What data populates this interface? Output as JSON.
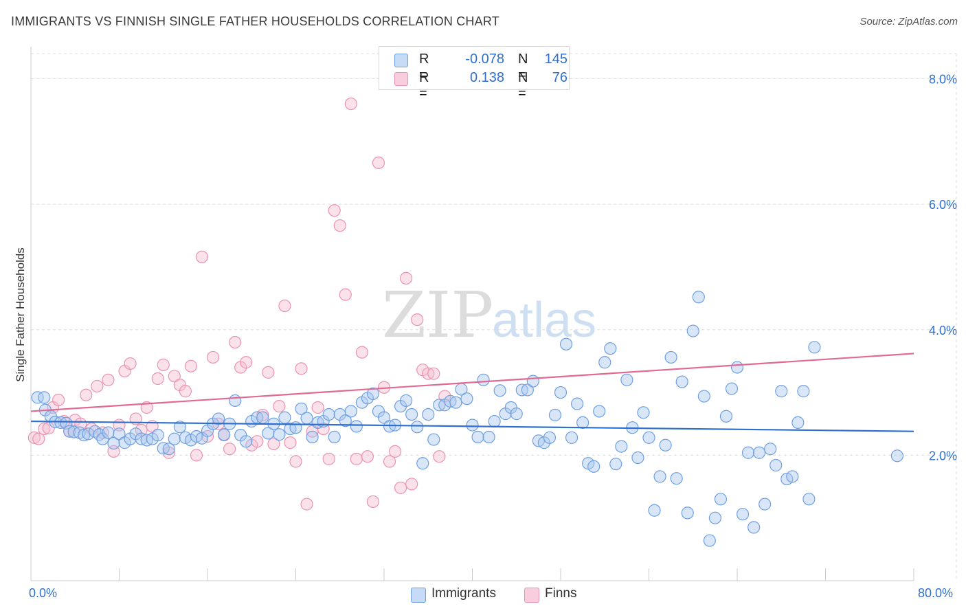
{
  "title": "IMMIGRANTS VS FINNISH SINGLE FATHER HOUSEHOLDS CORRELATION CHART",
  "source": "Source: ZipAtlas.com",
  "watermark": {
    "zip": "ZIP",
    "atlas": "atlas"
  },
  "legend": {
    "rows": [
      {
        "r_label": "R =",
        "r_value": "-0.078",
        "n_label": "N =",
        "n_value": "145"
      },
      {
        "r_label": "R =",
        "r_value": "0.138",
        "n_label": "N =",
        "n_value": "76"
      }
    ]
  },
  "bottom_legend": [
    "Immigrants",
    "Finns"
  ],
  "colors": {
    "immigrants_fill": "#a9c8f0",
    "immigrants_stroke": "#6f9fe0",
    "immigrants_line": "#2f6fce",
    "finns_fill": "#f6bcd0",
    "finns_stroke": "#ea93b2",
    "finns_line": "#e06a93",
    "tick_label": "#2f6fce",
    "grid": "#dddddd"
  },
  "chart_data": {
    "type": "scatter",
    "title": "IMMIGRANTS VS FINNISH SINGLE FATHER HOUSEHOLDS CORRELATION CHART",
    "xlabel": "",
    "ylabel": "Single Father Households",
    "xlim": [
      0,
      80
    ],
    "ylim": [
      0,
      8.4
    ],
    "x_tick_labels": [
      "0.0%",
      "80.0%"
    ],
    "y_ticks": [
      2,
      4,
      6,
      8
    ],
    "y_tick_labels": [
      "2.0%",
      "4.0%",
      "6.0%",
      "8.0%"
    ],
    "grid": true,
    "legend_position": "top-center",
    "series": [
      {
        "name": "Immigrants",
        "R": -0.078,
        "N": 145,
        "trend": {
          "x": [
            0,
            80
          ],
          "y": [
            2.54,
            2.38
          ]
        },
        "points": [
          [
            0.6,
            2.92
          ],
          [
            1.2,
            2.92
          ],
          [
            1.3,
            2.72
          ],
          [
            1.8,
            2.62
          ],
          [
            2.2,
            2.53
          ],
          [
            2.7,
            2.52
          ],
          [
            3.2,
            2.51
          ],
          [
            3.5,
            2.38
          ],
          [
            3.9,
            2.37
          ],
          [
            4.4,
            2.36
          ],
          [
            4.8,
            2.32
          ],
          [
            5.2,
            2.34
          ],
          [
            5.8,
            2.38
          ],
          [
            6.2,
            2.33
          ],
          [
            6.5,
            2.26
          ],
          [
            7.0,
            2.36
          ],
          [
            7.5,
            2.19
          ],
          [
            8.0,
            2.34
          ],
          [
            8.5,
            2.2
          ],
          [
            9.0,
            2.26
          ],
          [
            9.5,
            2.34
          ],
          [
            10.0,
            2.26
          ],
          [
            10.5,
            2.24
          ],
          [
            11.0,
            2.26
          ],
          [
            11.5,
            2.32
          ],
          [
            12.0,
            2.11
          ],
          [
            12.5,
            2.1
          ],
          [
            13.0,
            2.26
          ],
          [
            13.5,
            2.45
          ],
          [
            14.0,
            2.28
          ],
          [
            14.5,
            2.24
          ],
          [
            15.0,
            2.3
          ],
          [
            15.5,
            2.27
          ],
          [
            16.0,
            2.39
          ],
          [
            16.5,
            2.5
          ],
          [
            17.0,
            2.58
          ],
          [
            17.5,
            2.33
          ],
          [
            18.0,
            2.5
          ],
          [
            18.5,
            2.87
          ],
          [
            19.0,
            2.32
          ],
          [
            19.5,
            2.22
          ],
          [
            20.0,
            2.54
          ],
          [
            20.5,
            2.6
          ],
          [
            21.0,
            2.6
          ],
          [
            21.5,
            2.35
          ],
          [
            22.0,
            2.5
          ],
          [
            22.5,
            2.33
          ],
          [
            23.0,
            2.6
          ],
          [
            23.5,
            2.42
          ],
          [
            24.0,
            2.44
          ],
          [
            24.5,
            2.74
          ],
          [
            25.0,
            2.59
          ],
          [
            25.5,
            2.29
          ],
          [
            26.0,
            2.52
          ],
          [
            26.5,
            2.54
          ],
          [
            27.0,
            2.65
          ],
          [
            27.5,
            2.29
          ],
          [
            28.0,
            2.65
          ],
          [
            28.5,
            2.55
          ],
          [
            29.0,
            2.7
          ],
          [
            29.5,
            2.46
          ],
          [
            30.0,
            2.84
          ],
          [
            30.5,
            2.91
          ],
          [
            31.0,
            2.98
          ],
          [
            31.5,
            2.7
          ],
          [
            32.0,
            2.6
          ],
          [
            32.5,
            2.46
          ],
          [
            33.0,
            2.48
          ],
          [
            33.5,
            2.78
          ],
          [
            34.0,
            2.87
          ],
          [
            34.5,
            2.65
          ],
          [
            35.0,
            2.45
          ],
          [
            35.5,
            1.87
          ],
          [
            36.0,
            2.65
          ],
          [
            36.5,
            2.25
          ],
          [
            37.0,
            2.8
          ],
          [
            37.5,
            2.8
          ],
          [
            38.0,
            2.86
          ],
          [
            38.5,
            2.84
          ],
          [
            39.0,
            3.05
          ],
          [
            39.5,
            2.9
          ],
          [
            40.0,
            2.48
          ],
          [
            40.5,
            2.29
          ],
          [
            41.0,
            3.2
          ],
          [
            41.5,
            2.29
          ],
          [
            42.0,
            2.54
          ],
          [
            42.5,
            3.03
          ],
          [
            43.0,
            2.66
          ],
          [
            43.5,
            2.76
          ],
          [
            44.0,
            2.66
          ],
          [
            44.5,
            3.04
          ],
          [
            45.0,
            3.04
          ],
          [
            45.5,
            3.18
          ],
          [
            46.0,
            2.23
          ],
          [
            46.5,
            2.2
          ],
          [
            47.0,
            2.28
          ],
          [
            47.5,
            2.64
          ],
          [
            48.0,
            3.0
          ],
          [
            48.5,
            3.77
          ],
          [
            49.0,
            2.28
          ],
          [
            49.5,
            2.82
          ],
          [
            50.0,
            2.52
          ],
          [
            50.5,
            1.87
          ],
          [
            51.0,
            1.82
          ],
          [
            51.5,
            2.7
          ],
          [
            52.0,
            3.48
          ],
          [
            52.5,
            3.7
          ],
          [
            53.0,
            1.86
          ],
          [
            53.5,
            2.14
          ],
          [
            54.0,
            3.2
          ],
          [
            54.5,
            2.44
          ],
          [
            55.0,
            1.96
          ],
          [
            55.5,
            2.68
          ],
          [
            56.0,
            2.28
          ],
          [
            56.5,
            1.12
          ],
          [
            57.0,
            1.66
          ],
          [
            57.5,
            2.16
          ],
          [
            58.0,
            3.56
          ],
          [
            58.5,
            1.63
          ],
          [
            59.0,
            3.17
          ],
          [
            59.5,
            1.08
          ],
          [
            60.0,
            3.98
          ],
          [
            60.5,
            4.52
          ],
          [
            61.0,
            2.94
          ],
          [
            61.5,
            0.64
          ],
          [
            62.0,
            1.0
          ],
          [
            62.5,
            1.3
          ],
          [
            63.0,
            2.62
          ],
          [
            63.5,
            3.06
          ],
          [
            64.0,
            3.4
          ],
          [
            64.5,
            1.06
          ],
          [
            65.0,
            2.04
          ],
          [
            65.5,
            0.85
          ],
          [
            66.0,
            2.04
          ],
          [
            66.5,
            1.22
          ],
          [
            67.0,
            2.1
          ],
          [
            67.5,
            1.84
          ],
          [
            68.0,
            3.02
          ],
          [
            68.5,
            1.62
          ],
          [
            69.0,
            1.66
          ],
          [
            69.5,
            2.52
          ],
          [
            70.0,
            3.02
          ],
          [
            70.5,
            1.3
          ],
          [
            71.0,
            3.72
          ],
          [
            78.5,
            1.99
          ]
        ]
      },
      {
        "name": "Finns",
        "R": 0.138,
        "N": 76,
        "trend": {
          "x": [
            0,
            80
          ],
          "y": [
            2.7,
            3.62
          ]
        },
        "points": [
          [
            0.3,
            2.28
          ],
          [
            0.7,
            2.26
          ],
          [
            1.2,
            2.42
          ],
          [
            1.6,
            2.43
          ],
          [
            2.0,
            2.76
          ],
          [
            2.5,
            2.88
          ],
          [
            3.0,
            2.54
          ],
          [
            3.5,
            2.38
          ],
          [
            4.0,
            2.56
          ],
          [
            4.5,
            2.5
          ],
          [
            5.0,
            2.96
          ],
          [
            5.5,
            2.42
          ],
          [
            6.0,
            3.1
          ],
          [
            6.5,
            2.36
          ],
          [
            7.0,
            3.2
          ],
          [
            7.5,
            2.06
          ],
          [
            8.0,
            2.48
          ],
          [
            8.5,
            3.34
          ],
          [
            9.0,
            3.46
          ],
          [
            9.5,
            2.58
          ],
          [
            10.0,
            2.4
          ],
          [
            10.5,
            2.76
          ],
          [
            11.0,
            2.46
          ],
          [
            11.5,
            3.22
          ],
          [
            12.0,
            3.44
          ],
          [
            12.5,
            2.04
          ],
          [
            13.0,
            3.26
          ],
          [
            13.5,
            3.12
          ],
          [
            14.0,
            3.02
          ],
          [
            14.5,
            3.42
          ],
          [
            15.0,
            2.0
          ],
          [
            15.5,
            5.16
          ],
          [
            16.0,
            2.3
          ],
          [
            16.5,
            3.56
          ],
          [
            17.0,
            2.5
          ],
          [
            17.5,
            2.32
          ],
          [
            18.0,
            2.1
          ],
          [
            18.5,
            3.8
          ],
          [
            19.0,
            3.4
          ],
          [
            19.5,
            3.48
          ],
          [
            20.0,
            2.16
          ],
          [
            20.5,
            2.22
          ],
          [
            21.0,
            2.64
          ],
          [
            21.5,
            3.32
          ],
          [
            22.0,
            2.18
          ],
          [
            22.5,
            2.78
          ],
          [
            23.0,
            4.38
          ],
          [
            23.5,
            2.2
          ],
          [
            24.0,
            1.9
          ],
          [
            24.5,
            3.38
          ],
          [
            25.0,
            1.22
          ],
          [
            25.5,
            2.38
          ],
          [
            26.0,
            2.76
          ],
          [
            26.5,
            2.42
          ],
          [
            27.0,
            1.94
          ],
          [
            27.5,
            5.9
          ],
          [
            28.0,
            5.66
          ],
          [
            28.5,
            4.56
          ],
          [
            29.0,
            7.6
          ],
          [
            29.5,
            1.94
          ],
          [
            30.0,
            3.64
          ],
          [
            30.5,
            1.98
          ],
          [
            31.0,
            1.26
          ],
          [
            31.5,
            6.66
          ],
          [
            32.0,
            3.08
          ],
          [
            32.5,
            1.9
          ],
          [
            33.0,
            2.06
          ],
          [
            33.5,
            1.48
          ],
          [
            34.0,
            4.82
          ],
          [
            34.5,
            1.54
          ],
          [
            35.0,
            4.16
          ],
          [
            35.5,
            3.36
          ],
          [
            36.0,
            3.3
          ],
          [
            36.5,
            3.3
          ],
          [
            37.0,
            1.98
          ],
          [
            37.5,
            2.94
          ]
        ]
      }
    ]
  }
}
